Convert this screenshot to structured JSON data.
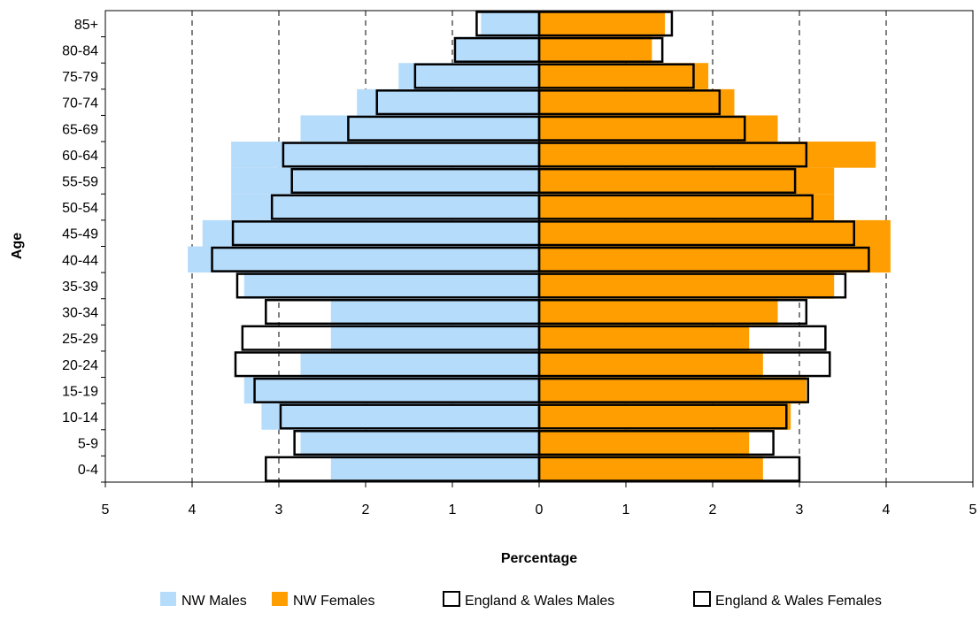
{
  "chart_data": {
    "type": "bar",
    "orientation": "horizontal",
    "layout": "population-pyramid",
    "xlabel": "Percentage",
    "ylabel": "Age",
    "xlim": [
      -5,
      5
    ],
    "xticks": [
      -5,
      -4,
      -3,
      -2,
      -1,
      0,
      1,
      2,
      3,
      4,
      5
    ],
    "xtick_labels": [
      "5",
      "4",
      "3",
      "2",
      "1",
      "0",
      "1",
      "2",
      "3",
      "4",
      "5"
    ],
    "grid": "vertical dashed",
    "legend_position": "bottom",
    "categories": [
      "0-4",
      "5-9",
      "10-14",
      "15-19",
      "20-24",
      "25-29",
      "30-34",
      "35-39",
      "40-44",
      "45-49",
      "50-54",
      "55-59",
      "60-64",
      "65-69",
      "70-74",
      "75-79",
      "80-84",
      "85+"
    ],
    "series": [
      {
        "name": "NW Males",
        "style": "filled",
        "side": "left",
        "color": "#b6dcfb",
        "values": [
          2.4,
          2.75,
          3.2,
          3.4,
          2.75,
          2.4,
          2.4,
          3.4,
          4.05,
          3.88,
          3.55,
          3.55,
          3.55,
          2.75,
          2.1,
          1.62,
          0.97,
          0.67
        ]
      },
      {
        "name": "NW Females",
        "style": "filled",
        "side": "right",
        "color": "#ff9e00",
        "values": [
          2.58,
          2.42,
          2.9,
          3.08,
          2.58,
          2.42,
          2.75,
          3.4,
          4.05,
          4.05,
          3.4,
          3.4,
          3.88,
          2.75,
          2.25,
          1.95,
          1.3,
          1.45
        ]
      },
      {
        "name": "England & Wales Males",
        "style": "outline",
        "side": "left",
        "color": "#000000",
        "values": [
          3.15,
          2.82,
          2.98,
          3.28,
          3.5,
          3.42,
          3.15,
          3.48,
          3.77,
          3.53,
          3.08,
          2.85,
          2.95,
          2.2,
          1.87,
          1.43,
          0.97,
          0.72
        ]
      },
      {
        "name": "England & Wales Females",
        "style": "outline",
        "side": "right",
        "color": "#000000",
        "values": [
          3.0,
          2.7,
          2.85,
          3.1,
          3.35,
          3.3,
          3.08,
          3.53,
          3.8,
          3.63,
          3.15,
          2.95,
          3.08,
          2.37,
          2.08,
          1.78,
          1.42,
          1.53
        ]
      }
    ]
  }
}
